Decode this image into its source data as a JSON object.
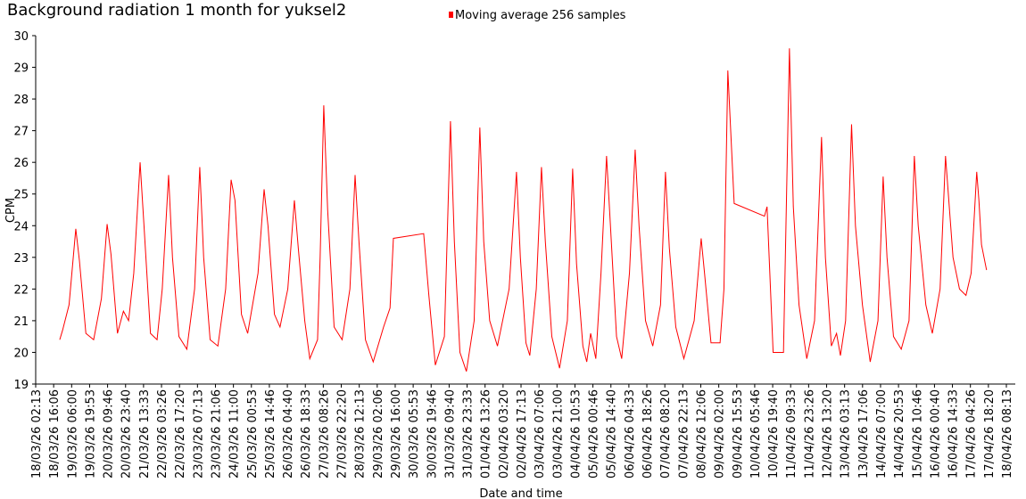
{
  "chart_data": {
    "type": "line",
    "title": "Background radiation 1 month for yuksel2",
    "x_label": "Date and time",
    "y_label": "CPM",
    "legend": "top",
    "grid": false,
    "ylim": [
      19,
      30
    ],
    "yticks": [
      19,
      20,
      21,
      22,
      23,
      24,
      25,
      26,
      27,
      28,
      29,
      30
    ],
    "xlim": [
      "18/03/26 02:13",
      "18/04/26 08:13"
    ],
    "xticks": [
      "18/03/26 02:13",
      "18/03/26 16:06",
      "19/03/26 06:00",
      "19/03/26 19:53",
      "20/03/26 09:46",
      "20/03/26 23:40",
      "21/03/26 13:33",
      "22/03/26 03:26",
      "22/03/26 17:20",
      "23/03/26 07:13",
      "23/03/26 21:06",
      "24/03/26 11:00",
      "25/03/26 00:53",
      "25/03/26 14:46",
      "26/03/26 04:40",
      "26/03/26 18:33",
      "27/03/26 08:26",
      "27/03/26 22:20",
      "28/03/26 12:13",
      "29/03/26 02:06",
      "29/03/26 16:00",
      "30/03/26 05:53",
      "30/03/26 19:46",
      "31/03/26 09:40",
      "31/03/26 23:33",
      "01/04/26 13:26",
      "02/04/26 03:20",
      "02/04/26 17:13",
      "03/04/26 07:06",
      "03/04/26 21:00",
      "04/04/26 10:53",
      "05/04/26 00:46",
      "05/04/26 14:40",
      "06/04/26 04:33",
      "06/04/26 18:26",
      "07/04/26 08:20",
      "07/04/26 22:13",
      "08/04/26 12:06",
      "09/04/26 02:00",
      "09/04/26 15:53",
      "10/04/26 05:46",
      "10/04/26 19:40",
      "11/04/26 09:33",
      "11/04/26 23:26",
      "12/04/26 13:20",
      "13/04/26 03:13",
      "13/04/26 17:06",
      "14/04/26 07:00",
      "14/04/26 20:53",
      "15/04/26 10:46",
      "16/04/26 00:40",
      "16/04/26 14:33",
      "17/04/26 04:26",
      "17/04/26 18:20",
      "18/04/26 08:13"
    ],
    "x": [
      "18/03/26 20:48",
      "18/03/26 23:00",
      "19/03/26 04:00",
      "19/03/26 09:12",
      "19/03/26 12:00",
      "19/03/26 17:00",
      "19/03/26 23:00",
      "20/03/26 05:00",
      "20/03/26 09:24",
      "20/03/26 12:24",
      "20/03/26 17:24",
      "20/03/26 22:00",
      "21/03/26 02:00",
      "21/03/26 06:00",
      "21/03/26 10:54",
      "21/03/26 13:54",
      "21/03/26 18:54",
      "22/03/26 00:00",
      "22/03/26 04:00",
      "22/03/26 08:54",
      "22/03/26 11:54",
      "22/03/26 16:54",
      "22/03/26 23:00",
      "23/03/26 05:00",
      "23/03/26 09:00",
      "23/03/26 12:00",
      "23/03/26 17:00",
      "23/03/26 23:00",
      "24/03/26 05:00",
      "24/03/26 09:12",
      "24/03/26 12:12",
      "24/03/26 17:12",
      "24/03/26 22:00",
      "25/03/26 06:00",
      "25/03/26 10:42",
      "25/03/26 13:42",
      "25/03/26 18:42",
      "25/03/26 23:00",
      "26/03/26 05:00",
      "26/03/26 10:06",
      "26/03/26 13:06",
      "26/03/26 18:06",
      "26/03/26 22:00",
      "27/03/26 04:00",
      "27/03/26 06:00",
      "27/03/26 08:48",
      "27/03/26 11:48",
      "27/03/26 16:48",
      "27/03/26 23:00",
      "28/03/26 05:00",
      "28/03/26 09:00",
      "28/03/26 12:00",
      "28/03/26 17:00",
      "28/03/26 23:00",
      "29/03/26 07:00",
      "29/03/26 12:00",
      "29/03/26 14:36",
      "30/03/26 14:00",
      "30/03/26 18:00",
      "30/03/26 23:00",
      "31/03/26 06:00",
      "31/03/26 10:42",
      "31/03/26 13:42",
      "31/03/26 18:00",
      "31/03/26 23:00",
      "01/04/26 05:00",
      "01/04/26 09:24",
      "01/04/26 12:24",
      "01/04/26 17:00",
      "01/04/26 23:00",
      "02/04/26 08:00",
      "02/04/26 13:42",
      "02/04/26 16:42",
      "02/04/26 21:00",
      "03/04/26 00:00",
      "03/04/26 05:00",
      "03/04/26 09:00",
      "03/04/26 12:00",
      "03/04/26 17:00",
      "03/04/26 23:00",
      "04/04/26 05:00",
      "04/04/26 09:06",
      "04/04/26 12:06",
      "04/04/26 17:00",
      "04/04/26 20:00",
      "04/04/26 23:00",
      "05/04/26 03:00",
      "05/04/26 07:00",
      "05/04/26 11:18",
      "05/04/26 14:18",
      "05/04/26 19:00",
      "05/04/26 23:00",
      "06/04/26 05:00",
      "06/04/26 09:24",
      "06/04/26 12:24",
      "06/04/26 17:24",
      "06/04/26 23:00",
      "07/04/26 05:00",
      "07/04/26 08:48",
      "07/04/26 11:48",
      "07/04/26 16:48",
      "07/04/26 23:00",
      "08/04/26 07:00",
      "08/04/26 12:24",
      "08/04/26 15:00",
      "08/04/26 20:00",
      "09/04/26 03:00",
      "09/04/26 06:00",
      "09/04/26 09:00",
      "09/04/26 13:54",
      "10/04/26 13:18",
      "10/04/26 15:18",
      "10/04/26 20:00",
      "11/04/26 04:00",
      "11/04/26 08:36",
      "11/04/26 11:36",
      "11/04/26 16:00",
      "11/04/26 22:00",
      "12/04/26 04:00",
      "12/04/26 09:24",
      "12/04/26 12:24",
      "12/04/26 17:00",
      "12/04/26 21:00",
      "13/04/26 00:00",
      "13/04/26 04:00",
      "13/04/26 08:36",
      "13/04/26 11:36",
      "13/04/26 17:00",
      "13/04/26 23:00",
      "14/04/26 05:00",
      "14/04/26 09:00",
      "14/04/26 12:00",
      "14/04/26 17:00",
      "14/04/26 23:00",
      "15/04/26 05:00",
      "15/04/26 09:06",
      "15/04/26 12:06",
      "15/04/26 18:00",
      "15/04/26 23:00",
      "16/04/26 05:00",
      "16/04/26 09:12",
      "16/04/26 15:00",
      "16/04/26 20:00",
      "17/04/26 01:00",
      "17/04/26 05:00",
      "17/04/26 09:18",
      "17/04/26 11:00",
      "17/04/26 13:00",
      "17/04/26 16:54"
    ],
    "series": [
      {
        "name": "Moving average 256 samples",
        "color": "#ff0000",
        "values": [
          20.4,
          20.7,
          21.5,
          23.9,
          22.9,
          20.6,
          20.4,
          21.7,
          24.05,
          23.1,
          20.6,
          21.3,
          21.0,
          22.5,
          26.0,
          24.0,
          20.6,
          20.4,
          22.0,
          25.6,
          23.0,
          20.5,
          20.1,
          22.0,
          25.85,
          23.0,
          20.4,
          20.2,
          22.0,
          25.45,
          24.8,
          21.2,
          20.6,
          22.5,
          25.15,
          24.0,
          21.2,
          20.8,
          22.0,
          24.8,
          23.3,
          21.0,
          19.8,
          20.4,
          23.0,
          27.8,
          24.5,
          20.8,
          20.4,
          22.0,
          25.6,
          23.5,
          20.4,
          19.7,
          20.8,
          21.4,
          23.6,
          23.75,
          21.8,
          19.6,
          20.5,
          27.3,
          23.5,
          20.0,
          19.4,
          21.0,
          27.1,
          23.5,
          21.0,
          20.2,
          22.0,
          25.7,
          23.0,
          20.3,
          19.9,
          22.0,
          25.85,
          23.5,
          20.5,
          19.5,
          21.0,
          25.8,
          22.8,
          20.2,
          19.7,
          20.6,
          19.8,
          22.5,
          26.2,
          24.0,
          20.5,
          19.8,
          22.5,
          26.4,
          24.0,
          21.0,
          20.2,
          21.5,
          25.7,
          23.3,
          20.8,
          19.8,
          21.0,
          23.6,
          22.5,
          20.3,
          20.3,
          22.0,
          28.9,
          24.7,
          24.3,
          24.6,
          20.0,
          20.0,
          29.6,
          24.6,
          21.5,
          19.8,
          21.0,
          26.8,
          23.0,
          20.2,
          20.6,
          19.9,
          21.0,
          27.2,
          24.0,
          21.5,
          19.7,
          21.0,
          25.55,
          23.0,
          20.5,
          20.1,
          21.0,
          26.2,
          24.0,
          21.5,
          20.6,
          22.0,
          26.2,
          23.0,
          22.0,
          21.8,
          22.5,
          25.7,
          24.8,
          23.4,
          22.6
        ]
      }
    ]
  }
}
